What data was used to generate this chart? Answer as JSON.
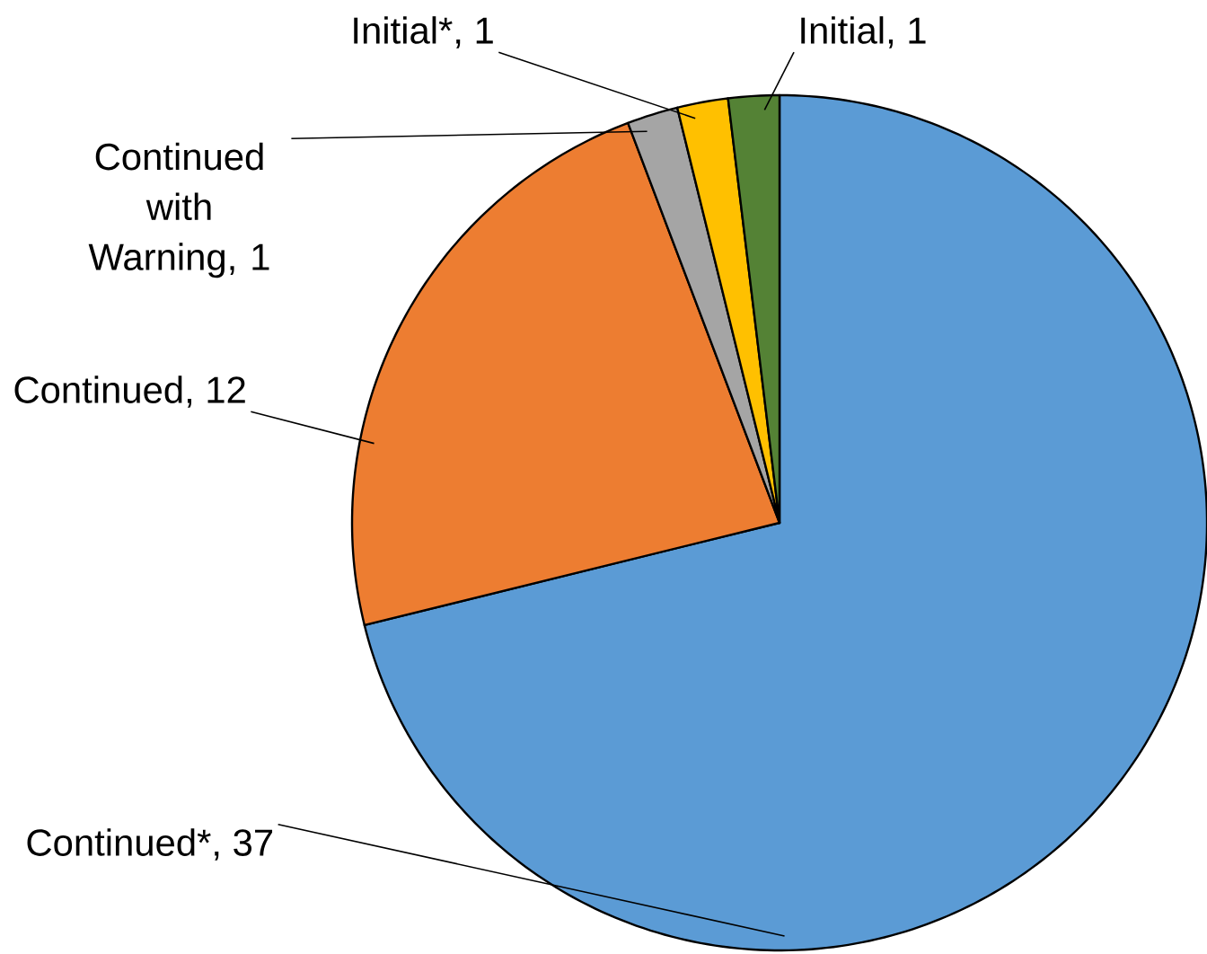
{
  "chart_data": {
    "type": "pie",
    "categories": [
      "Continued*, 37",
      "Continued, 12",
      "Continued with Warning, 1",
      "Initial*, 1",
      "Initial, 1"
    ],
    "values": [
      37,
      12,
      1,
      1,
      1
    ],
    "colors": [
      "#5b9bd5",
      "#ed7d31",
      "#a5a5a5",
      "#ffc000",
      "#548235"
    ]
  }
}
